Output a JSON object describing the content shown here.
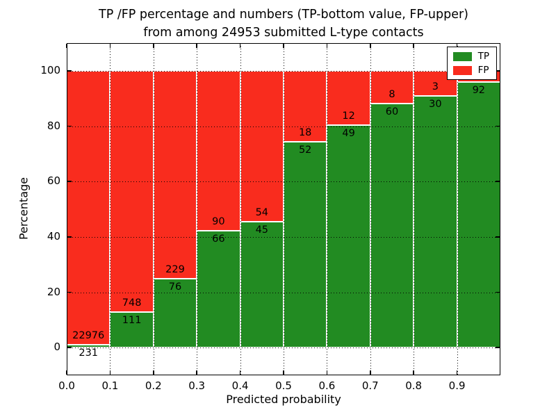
{
  "chart_data": {
    "type": "bar",
    "subtype": "stacked_percentage_histogram",
    "title_lines": [
      "TP /FP percentage and numbers (TP-bottom value, FP-upper)",
      "from among 24953 submitted L-type contacts"
    ],
    "total_contacts": 24953,
    "xlabel": "Predicted probability",
    "ylabel": "Percentage",
    "xlim": [
      0.0,
      1.0
    ],
    "ylim": [
      -10,
      110
    ],
    "x_tick_labels": [
      "0.0",
      "0.1",
      "0.2",
      "0.3",
      "0.4",
      "0.5",
      "0.6",
      "0.7",
      "0.8",
      "0.9"
    ],
    "y_tick_values": [
      0,
      20,
      40,
      60,
      80,
      100
    ],
    "grid": true,
    "bar_width": 0.1,
    "colors": {
      "tp": "#228b22",
      "fp": "#f92c1e",
      "bar_edge": "#ffffff"
    },
    "legend": {
      "position": "upper right",
      "entries": [
        {
          "label": "TP",
          "color": "#228b22"
        },
        {
          "label": "FP",
          "color": "#f92c1e"
        }
      ]
    },
    "bins": [
      {
        "x_start": 0.0,
        "x_end": 0.1,
        "tp_count": 231,
        "fp_count": 22976,
        "tp_pct": 1.0
      },
      {
        "x_start": 0.1,
        "x_end": 0.2,
        "tp_count": 111,
        "fp_count": 748,
        "tp_pct": 12.9
      },
      {
        "x_start": 0.2,
        "x_end": 0.3,
        "tp_count": 76,
        "fp_count": 229,
        "tp_pct": 24.9
      },
      {
        "x_start": 0.3,
        "x_end": 0.4,
        "tp_count": 66,
        "fp_count": 90,
        "tp_pct": 42.3
      },
      {
        "x_start": 0.4,
        "x_end": 0.5,
        "tp_count": 45,
        "fp_count": 54,
        "tp_pct": 45.5
      },
      {
        "x_start": 0.5,
        "x_end": 0.6,
        "tp_count": 52,
        "fp_count": 18,
        "tp_pct": 74.3
      },
      {
        "x_start": 0.6,
        "x_end": 0.7,
        "tp_count": 49,
        "fp_count": 12,
        "tp_pct": 80.3
      },
      {
        "x_start": 0.7,
        "x_end": 0.8,
        "tp_count": 60,
        "fp_count": 8,
        "tp_pct": 88.2
      },
      {
        "x_start": 0.8,
        "x_end": 0.9,
        "tp_count": 30,
        "fp_count": 3,
        "tp_pct": 90.9
      },
      {
        "x_start": 0.9,
        "x_end": 1.0,
        "tp_count": 92,
        "fp_count": null,
        "tp_pct": 95.9,
        "fp_label_hidden_by_legend": true
      }
    ]
  }
}
